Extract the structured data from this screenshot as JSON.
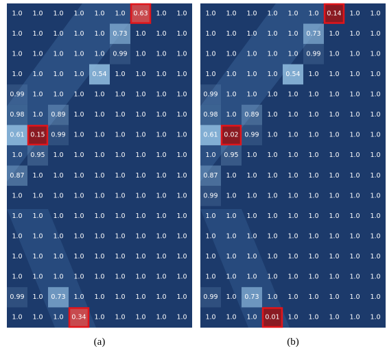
{
  "panels": [
    {
      "caption": "(a)",
      "highlighted": [
        [
          0,
          6
        ],
        [
          6,
          1
        ],
        [
          15,
          3
        ]
      ],
      "rows": [
        [
          "1.0",
          "1.0",
          "1.0",
          "1.0",
          "1.0",
          "1.0",
          "0.63",
          "1.0",
          "1.0"
        ],
        [
          "1.0",
          "1.0",
          "1.0",
          "1.0",
          "1.0",
          "0.73",
          "1.0",
          "1.0",
          "1.0"
        ],
        [
          "1.0",
          "1.0",
          "1.0",
          "1.0",
          "1.0",
          "0.99",
          "1.0",
          "1.0",
          "1.0"
        ],
        [
          "1.0",
          "1.0",
          "1.0",
          "1.0",
          "0.54",
          "1.0",
          "1.0",
          "1.0",
          "1.0"
        ],
        [
          "0.99",
          "1.0",
          "1.0",
          "1.0",
          "1.0",
          "1.0",
          "1.0",
          "1.0",
          "1.0"
        ],
        [
          "0.98",
          "1.0",
          "0.89",
          "1.0",
          "1.0",
          "1.0",
          "1.0",
          "1.0",
          "1.0"
        ],
        [
          "0.61",
          "0.15",
          "0.99",
          "1.0",
          "1.0",
          "1.0",
          "1.0",
          "1.0",
          "1.0"
        ],
        [
          "1.0",
          "0.95",
          "1.0",
          "1.0",
          "1.0",
          "1.0",
          "1.0",
          "1.0",
          "1.0"
        ],
        [
          "0.87",
          "1.0",
          "1.0",
          "1.0",
          "1.0",
          "1.0",
          "1.0",
          "1.0",
          "1.0"
        ],
        [
          "1.0",
          "1.0",
          "1.0",
          "1.0",
          "1.0",
          "1.0",
          "1.0",
          "1.0",
          "1.0"
        ],
        [
          "1.0",
          "1.0",
          "1.0",
          "1.0",
          "1.0",
          "1.0",
          "1.0",
          "1.0",
          "1.0"
        ],
        [
          "1.0",
          "1.0",
          "1.0",
          "1.0",
          "1.0",
          "1.0",
          "1.0",
          "1.0",
          "1.0"
        ],
        [
          "1.0",
          "1.0",
          "1.0",
          "1.0",
          "1.0",
          "1.0",
          "1.0",
          "1.0",
          "1.0"
        ],
        [
          "1.0",
          "1.0",
          "1.0",
          "1.0",
          "1.0",
          "1.0",
          "1.0",
          "1.0",
          "1.0"
        ],
        [
          "0.99",
          "1.0",
          "0.73",
          "1.0",
          "1.0",
          "1.0",
          "1.0",
          "1.0",
          "1.0"
        ],
        [
          "1.0",
          "1.0",
          "1.0",
          "0.34",
          "1.0",
          "1.0",
          "1.0",
          "1.0",
          "1.0"
        ]
      ]
    },
    {
      "caption": "(b)",
      "highlighted": [
        [
          0,
          6
        ],
        [
          6,
          1
        ],
        [
          15,
          3
        ]
      ],
      "rows": [
        [
          "1.0",
          "1.0",
          "1.0",
          "1.0",
          "1.0",
          "1.0",
          "0.14",
          "1.0",
          "1.0"
        ],
        [
          "1.0",
          "1.0",
          "1.0",
          "1.0",
          "1.0",
          "0.73",
          "1.0",
          "1.0",
          "1.0"
        ],
        [
          "1.0",
          "1.0",
          "1.0",
          "1.0",
          "1.0",
          "0.99",
          "1.0",
          "1.0",
          "1.0"
        ],
        [
          "1.0",
          "1.0",
          "1.0",
          "1.0",
          "0.54",
          "1.0",
          "1.0",
          "1.0",
          "1.0"
        ],
        [
          "0.99",
          "1.0",
          "1.0",
          "1.0",
          "1.0",
          "1.0",
          "1.0",
          "1.0",
          "1.0"
        ],
        [
          "0.98",
          "1.0",
          "0.89",
          "1.0",
          "1.0",
          "1.0",
          "1.0",
          "1.0",
          "1.0"
        ],
        [
          "0.61",
          "0.02",
          "0.99",
          "1.0",
          "1.0",
          "1.0",
          "1.0",
          "1.0",
          "1.0"
        ],
        [
          "1.0",
          "0.95",
          "1.0",
          "1.0",
          "1.0",
          "1.0",
          "1.0",
          "1.0",
          "1.0"
        ],
        [
          "0.87",
          "1.0",
          "1.0",
          "1.0",
          "1.0",
          "1.0",
          "1.0",
          "1.0",
          "1.0"
        ],
        [
          "0.99",
          "1.0",
          "1.0",
          "1.0",
          "1.0",
          "1.0",
          "1.0",
          "1.0",
          "1.0"
        ],
        [
          "1.0",
          "1.0",
          "1.0",
          "1.0",
          "1.0",
          "1.0",
          "1.0",
          "1.0",
          "1.0"
        ],
        [
          "1.0",
          "1.0",
          "1.0",
          "1.0",
          "1.0",
          "1.0",
          "1.0",
          "1.0",
          "1.0"
        ],
        [
          "1.0",
          "1.0",
          "1.0",
          "1.0",
          "1.0",
          "1.0",
          "1.0",
          "1.0",
          "1.0"
        ],
        [
          "1.0",
          "1.0",
          "1.0",
          "1.0",
          "1.0",
          "1.0",
          "1.0",
          "1.0",
          "1.0"
        ],
        [
          "0.99",
          "1.0",
          "0.73",
          "1.0",
          "1.0",
          "1.0",
          "1.0",
          "1.0",
          "1.0"
        ],
        [
          "1.0",
          "1.0",
          "1.0",
          "0.01",
          "1.0",
          "1.0",
          "1.0",
          "1.0",
          "1.0"
        ]
      ]
    }
  ]
}
